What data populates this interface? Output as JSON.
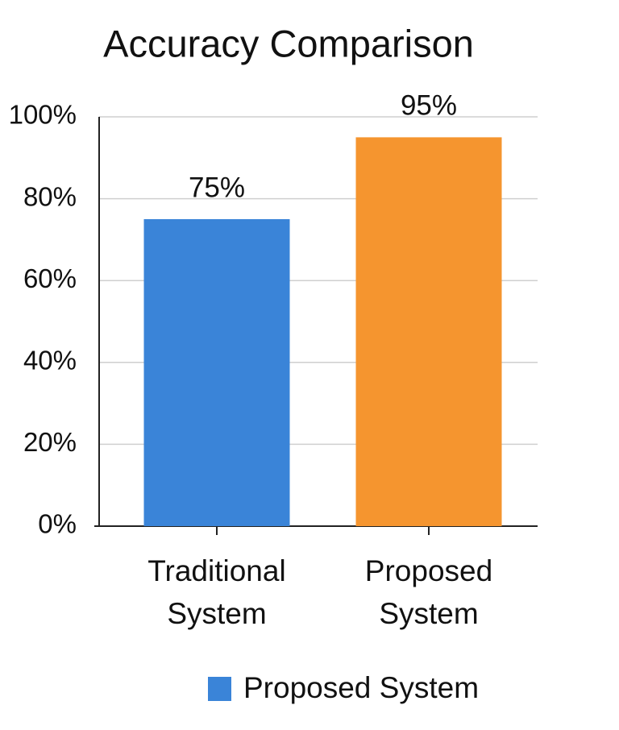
{
  "chart_data": {
    "type": "bar",
    "title": "Accuracy Comparison",
    "categories": [
      "Traditional System",
      "Proposed System"
    ],
    "series": [
      {
        "name": "Proposed System",
        "color": "#3a84d8",
        "values": [
          75,
          95
        ],
        "value_labels": [
          "75%",
          "95%"
        ]
      }
    ],
    "bar_colors": [
      "#3a84d8",
      "#f5952f"
    ],
    "ylim": [
      0,
      100
    ],
    "yticks": [
      {
        "value": 0,
        "label": "0%"
      },
      {
        "value": 20,
        "label": "20%"
      },
      {
        "value": 40,
        "label": "40%"
      },
      {
        "value": 60,
        "label": "60%"
      },
      {
        "value": 80,
        "label": "80%"
      },
      {
        "value": 100,
        "label": "100%"
      }
    ],
    "grid": true,
    "legend": "bottom"
  }
}
